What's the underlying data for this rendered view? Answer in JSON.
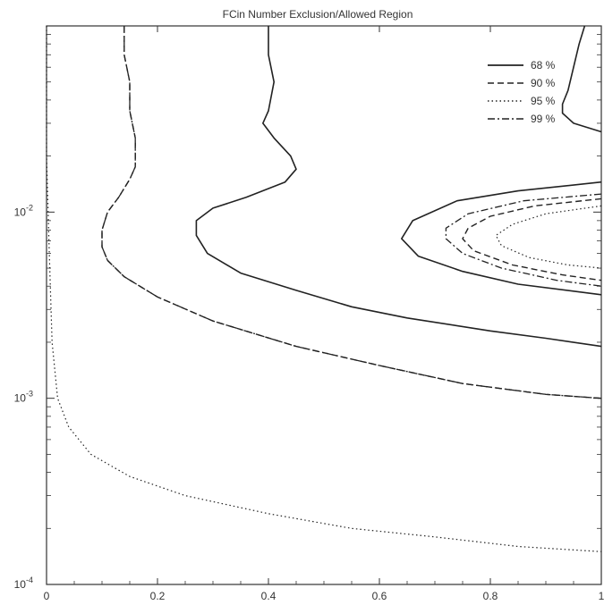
{
  "chart_data": {
    "type": "line",
    "title": "FCin Number Exclusion/Allowed Region",
    "xlabel": "",
    "ylabel": "",
    "xlim": [
      0,
      1
    ],
    "ylim": [
      0.0001,
      0.1
    ],
    "y_scale": "log",
    "grid": false,
    "x_ticks": [
      "0",
      "0.2",
      "0.4",
      "0.6",
      "0.8",
      "1"
    ],
    "y_ticks": [
      {
        "value": 0.01,
        "base": "10",
        "exp": "-2"
      },
      {
        "value": 0.001,
        "base": "10",
        "exp": "-3"
      },
      {
        "value": 0.0001,
        "base": "10",
        "exp": "-4"
      }
    ],
    "legend_position": "top-right",
    "legend": [
      {
        "label": "68 %",
        "style": "solid"
      },
      {
        "label": "90 %",
        "style": "dashed"
      },
      {
        "label": "95 %",
        "style": "dotted"
      },
      {
        "label": "99 %",
        "style": "dashdot"
      }
    ],
    "series": [
      {
        "style": "solid",
        "part": "left",
        "points": [
          [
            0.4,
            0.1
          ],
          [
            0.4,
            0.07
          ],
          [
            0.41,
            0.05
          ],
          [
            0.4,
            0.035
          ],
          [
            0.39,
            0.03
          ],
          [
            0.41,
            0.025
          ],
          [
            0.44,
            0.02
          ],
          [
            0.45,
            0.017
          ],
          [
            0.43,
            0.0145
          ],
          [
            0.36,
            0.012
          ],
          [
            0.3,
            0.0105
          ],
          [
            0.27,
            0.009
          ],
          [
            0.27,
            0.0075
          ],
          [
            0.29,
            0.006
          ],
          [
            0.35,
            0.0047
          ],
          [
            0.45,
            0.0038
          ],
          [
            0.55,
            0.0031
          ],
          [
            0.65,
            0.0027
          ],
          [
            0.8,
            0.0023
          ],
          [
            0.9,
            0.0021
          ],
          [
            1.0,
            0.0019
          ]
        ]
      },
      {
        "style": "solid",
        "part": "upper-right",
        "points": [
          [
            0.97,
            0.1
          ],
          [
            0.96,
            0.08
          ],
          [
            0.95,
            0.06
          ],
          [
            0.94,
            0.045
          ],
          [
            0.93,
            0.038
          ],
          [
            0.93,
            0.034
          ],
          [
            0.95,
            0.03
          ],
          [
            1.0,
            0.027
          ]
        ]
      },
      {
        "style": "solid",
        "part": "inner",
        "points": [
          [
            1.0,
            0.0145
          ],
          [
            0.85,
            0.013
          ],
          [
            0.74,
            0.0115
          ],
          [
            0.66,
            0.009
          ],
          [
            0.64,
            0.0072
          ],
          [
            0.67,
            0.0058
          ],
          [
            0.75,
            0.0048
          ],
          [
            0.85,
            0.0041
          ],
          [
            1.0,
            0.0036
          ]
        ]
      },
      {
        "style": "dashed",
        "part": "left",
        "points": [
          [
            0.14,
            0.1
          ],
          [
            0.14,
            0.07
          ],
          [
            0.15,
            0.05
          ],
          [
            0.15,
            0.035
          ],
          [
            0.16,
            0.025
          ],
          [
            0.16,
            0.0175
          ],
          [
            0.15,
            0.015
          ],
          [
            0.13,
            0.012
          ],
          [
            0.11,
            0.01
          ],
          [
            0.1,
            0.008
          ],
          [
            0.1,
            0.0065
          ],
          [
            0.11,
            0.0055
          ],
          [
            0.14,
            0.0045
          ],
          [
            0.2,
            0.0035
          ],
          [
            0.3,
            0.0026
          ],
          [
            0.45,
            0.0019
          ],
          [
            0.6,
            0.0015
          ],
          [
            0.75,
            0.0012
          ],
          [
            0.9,
            0.00105
          ],
          [
            1.0,
            0.001
          ]
        ]
      },
      {
        "style": "dashed",
        "part": "inner",
        "points": [
          [
            1.0,
            0.0118
          ],
          [
            0.88,
            0.0108
          ],
          [
            0.8,
            0.0095
          ],
          [
            0.76,
            0.0082
          ],
          [
            0.75,
            0.0072
          ],
          [
            0.77,
            0.0062
          ],
          [
            0.84,
            0.0052
          ],
          [
            0.93,
            0.0046
          ],
          [
            1.0,
            0.0043
          ]
        ]
      },
      {
        "style": "dotted",
        "part": "left",
        "points": [
          [
            0.0,
            0.1
          ],
          [
            0.0,
            0.02
          ],
          [
            0.005,
            0.006
          ],
          [
            0.01,
            0.002
          ],
          [
            0.02,
            0.001
          ],
          [
            0.04,
            0.0007
          ],
          [
            0.08,
            0.0005
          ],
          [
            0.15,
            0.00038
          ],
          [
            0.25,
            0.0003
          ],
          [
            0.4,
            0.00024
          ],
          [
            0.55,
            0.0002
          ],
          [
            0.7,
            0.00018
          ],
          [
            0.85,
            0.00016
          ],
          [
            1.0,
            0.00015
          ]
        ]
      },
      {
        "style": "dotted",
        "part": "inner",
        "points": [
          [
            1.0,
            0.0108
          ],
          [
            0.9,
            0.0098
          ],
          [
            0.84,
            0.0086
          ],
          [
            0.81,
            0.0075
          ],
          [
            0.82,
            0.0066
          ],
          [
            0.87,
            0.0057
          ],
          [
            0.94,
            0.0052
          ],
          [
            1.0,
            0.005
          ]
        ]
      },
      {
        "style": "dashdot",
        "part": "left",
        "points": [
          [
            0.14,
            0.1
          ],
          [
            0.14,
            0.07
          ],
          [
            0.15,
            0.05
          ],
          [
            0.15,
            0.035
          ],
          [
            0.16,
            0.025
          ],
          [
            0.16,
            0.0175
          ],
          [
            0.15,
            0.015
          ],
          [
            0.13,
            0.012
          ],
          [
            0.11,
            0.01
          ],
          [
            0.1,
            0.008
          ],
          [
            0.1,
            0.0065
          ],
          [
            0.11,
            0.0055
          ],
          [
            0.14,
            0.0045
          ],
          [
            0.2,
            0.0035
          ],
          [
            0.3,
            0.0026
          ],
          [
            0.45,
            0.0019
          ],
          [
            0.6,
            0.0015
          ],
          [
            0.75,
            0.0012
          ],
          [
            0.9,
            0.00105
          ],
          [
            1.0,
            0.001
          ]
        ]
      },
      {
        "style": "dashdot",
        "part": "inner",
        "points": [
          [
            1.0,
            0.0125
          ],
          [
            0.86,
            0.0115
          ],
          [
            0.76,
            0.0098
          ],
          [
            0.72,
            0.0082
          ],
          [
            0.72,
            0.0072
          ],
          [
            0.75,
            0.006
          ],
          [
            0.82,
            0.005
          ],
          [
            0.92,
            0.0043
          ],
          [
            1.0,
            0.004
          ]
        ]
      }
    ]
  }
}
